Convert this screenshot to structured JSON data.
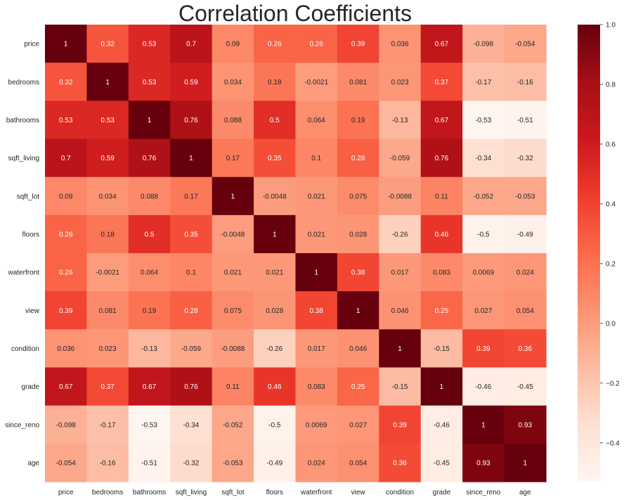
{
  "chart_data": {
    "type": "heatmap",
    "title": "Correlation Coefficients",
    "labels": [
      "price",
      "bedrooms",
      "bathrooms",
      "sqft_living",
      "sqft_lot",
      "floors",
      "waterfront",
      "view",
      "condition",
      "grade",
      "since_reno",
      "age"
    ],
    "matrix": [
      [
        1,
        0.32,
        0.53,
        0.7,
        0.09,
        0.26,
        0.26,
        0.39,
        0.036,
        0.67,
        -0.098,
        -0.054
      ],
      [
        0.32,
        1,
        0.53,
        0.59,
        0.034,
        0.18,
        -0.0021,
        0.081,
        0.023,
        0.37,
        -0.17,
        -0.16
      ],
      [
        0.53,
        0.53,
        1,
        0.76,
        0.088,
        0.5,
        0.064,
        0.19,
        -0.13,
        0.67,
        -0.53,
        -0.51
      ],
      [
        0.7,
        0.59,
        0.76,
        1,
        0.17,
        0.35,
        0.1,
        0.28,
        -0.059,
        0.76,
        -0.34,
        -0.32
      ],
      [
        0.09,
        0.034,
        0.088,
        0.17,
        1,
        -0.0048,
        0.021,
        0.075,
        -0.0088,
        0.11,
        -0.052,
        -0.053
      ],
      [
        0.26,
        0.18,
        0.5,
        0.35,
        -0.0048,
        1,
        0.021,
        0.028,
        -0.26,
        0.46,
        -0.5,
        -0.49
      ],
      [
        0.26,
        -0.0021,
        0.064,
        0.1,
        0.021,
        0.021,
        1,
        0.38,
        0.017,
        0.083,
        0.0069,
        0.024
      ],
      [
        0.39,
        0.081,
        0.19,
        0.28,
        0.075,
        0.028,
        0.38,
        1,
        0.046,
        0.25,
        0.027,
        0.054
      ],
      [
        0.036,
        0.023,
        -0.13,
        -0.059,
        -0.0088,
        -0.26,
        0.017,
        0.046,
        1,
        -0.15,
        0.39,
        0.36
      ],
      [
        0.67,
        0.37,
        0.67,
        0.76,
        0.11,
        0.46,
        0.083,
        0.25,
        -0.15,
        1,
        -0.46,
        -0.45
      ],
      [
        -0.098,
        -0.17,
        -0.53,
        -0.34,
        -0.052,
        -0.5,
        0.0069,
        0.027,
        0.39,
        -0.46,
        1,
        0.93
      ],
      [
        -0.054,
        -0.16,
        -0.51,
        -0.32,
        -0.053,
        -0.49,
        0.024,
        0.054,
        0.36,
        -0.45,
        0.93,
        1
      ]
    ],
    "colormap": "Reds",
    "vmin": -0.53,
    "vmax": 1.0,
    "colorbar_ticks": [
      1.0,
      0.8,
      0.6,
      0.4,
      0.2,
      0.0,
      -0.2,
      -0.4
    ],
    "colorbar_tick_labels": [
      "1.0",
      "0.8",
      "0.6",
      "0.4",
      "0.2",
      "0.0",
      "−0.2",
      "−0.4"
    ],
    "annotations": true
  }
}
